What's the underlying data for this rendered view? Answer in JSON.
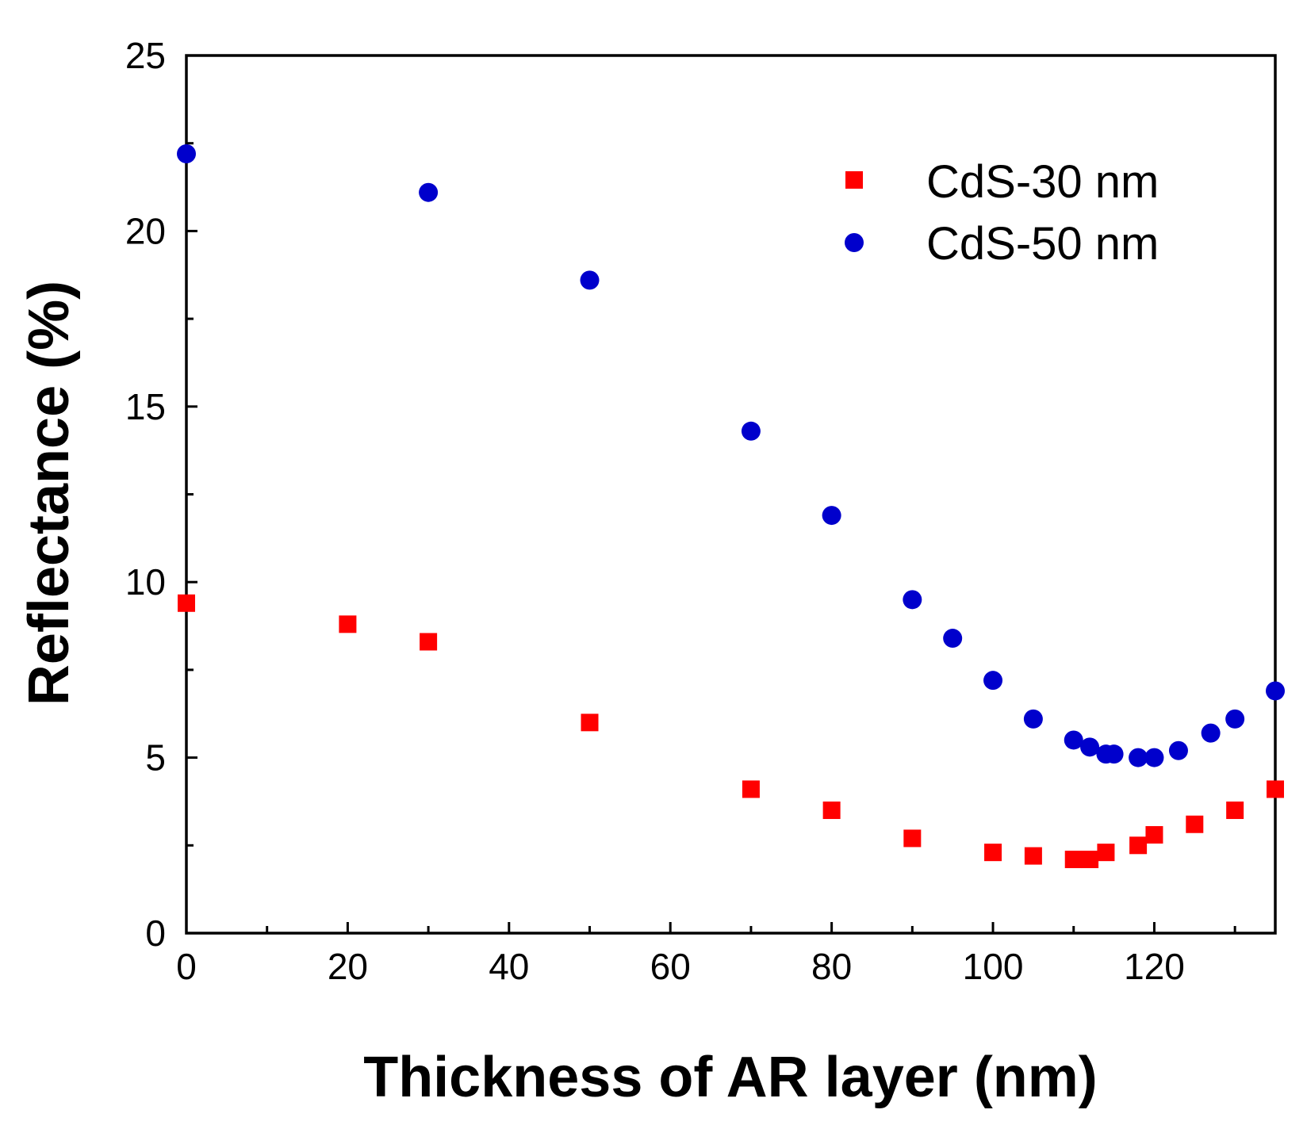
{
  "chart_data": {
    "type": "scatter",
    "title": "",
    "xlabel": "Thickness of AR layer (nm)",
    "ylabel": "Reflectance (%)",
    "xlim": [
      0,
      135
    ],
    "ylim": [
      0,
      25
    ],
    "x_ticks": [
      0,
      20,
      40,
      60,
      80,
      100,
      120
    ],
    "x_tick_labels": [
      "0",
      "20",
      "40",
      "60",
      "80",
      "100",
      "120"
    ],
    "x_minor_ticks": [
      10,
      30,
      50,
      70,
      90,
      110,
      130
    ],
    "y_ticks": [
      0,
      5,
      10,
      15,
      20,
      25
    ],
    "y_tick_labels": [
      "0",
      "5",
      "10",
      "15",
      "20",
      "25"
    ],
    "y_minor_ticks": [
      2.5,
      7.5,
      12.5,
      17.5,
      22.5
    ],
    "grid": false,
    "legend_position": "top-right",
    "series": [
      {
        "name": "CdS-30 nm",
        "marker": "square",
        "color": "#ff0000",
        "x": [
          0,
          20,
          30,
          50,
          70,
          80,
          90,
          100,
          105,
          110,
          112,
          114,
          118,
          120,
          125,
          130,
          135
        ],
        "y": [
          9.4,
          8.8,
          8.3,
          6.0,
          4.1,
          3.5,
          2.7,
          2.3,
          2.2,
          2.1,
          2.1,
          2.3,
          2.5,
          2.8,
          3.1,
          3.5,
          4.1
        ]
      },
      {
        "name": "CdS-50 nm",
        "marker": "circle",
        "color": "#0000cc",
        "x": [
          0,
          30,
          50,
          70,
          80,
          90,
          95,
          100,
          105,
          110,
          112,
          114,
          115,
          118,
          120,
          123,
          127,
          130,
          135
        ],
        "y": [
          22.2,
          21.1,
          18.6,
          14.3,
          11.9,
          9.5,
          8.4,
          7.2,
          6.1,
          5.5,
          5.3,
          5.1,
          5.1,
          5.0,
          5.0,
          5.2,
          5.7,
          6.1,
          6.9
        ]
      }
    ]
  }
}
